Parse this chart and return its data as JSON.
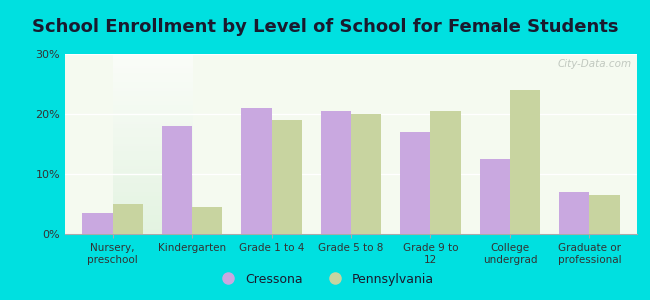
{
  "title": "School Enrollment by Level of School for Female Students",
  "categories": [
    "Nursery,\npreschool",
    "Kindergarten",
    "Grade 1 to 4",
    "Grade 5 to 8",
    "Grade 9 to\n12",
    "College\nundergrad",
    "Graduate or\nprofessional"
  ],
  "cressona": [
    3.5,
    18.0,
    21.0,
    20.5,
    17.0,
    12.5,
    7.0
  ],
  "pennsylvania": [
    5.0,
    4.5,
    19.0,
    20.0,
    20.5,
    24.0,
    6.5
  ],
  "cressona_color": "#c9a8e0",
  "pennsylvania_color": "#c8d4a0",
  "background_outer": "#00e0e0",
  "background_inner": "#f5faf0",
  "ylim": [
    0,
    30
  ],
  "yticks": [
    0,
    10,
    20,
    30
  ],
  "ytick_labels": [
    "0%",
    "10%",
    "20%",
    "30%"
  ],
  "bar_width": 0.38,
  "title_fontsize": 13,
  "title_color": "#1a1a2e",
  "legend_labels": [
    "Cressona",
    "Pennsylvania"
  ],
  "watermark": "City-Data.com"
}
